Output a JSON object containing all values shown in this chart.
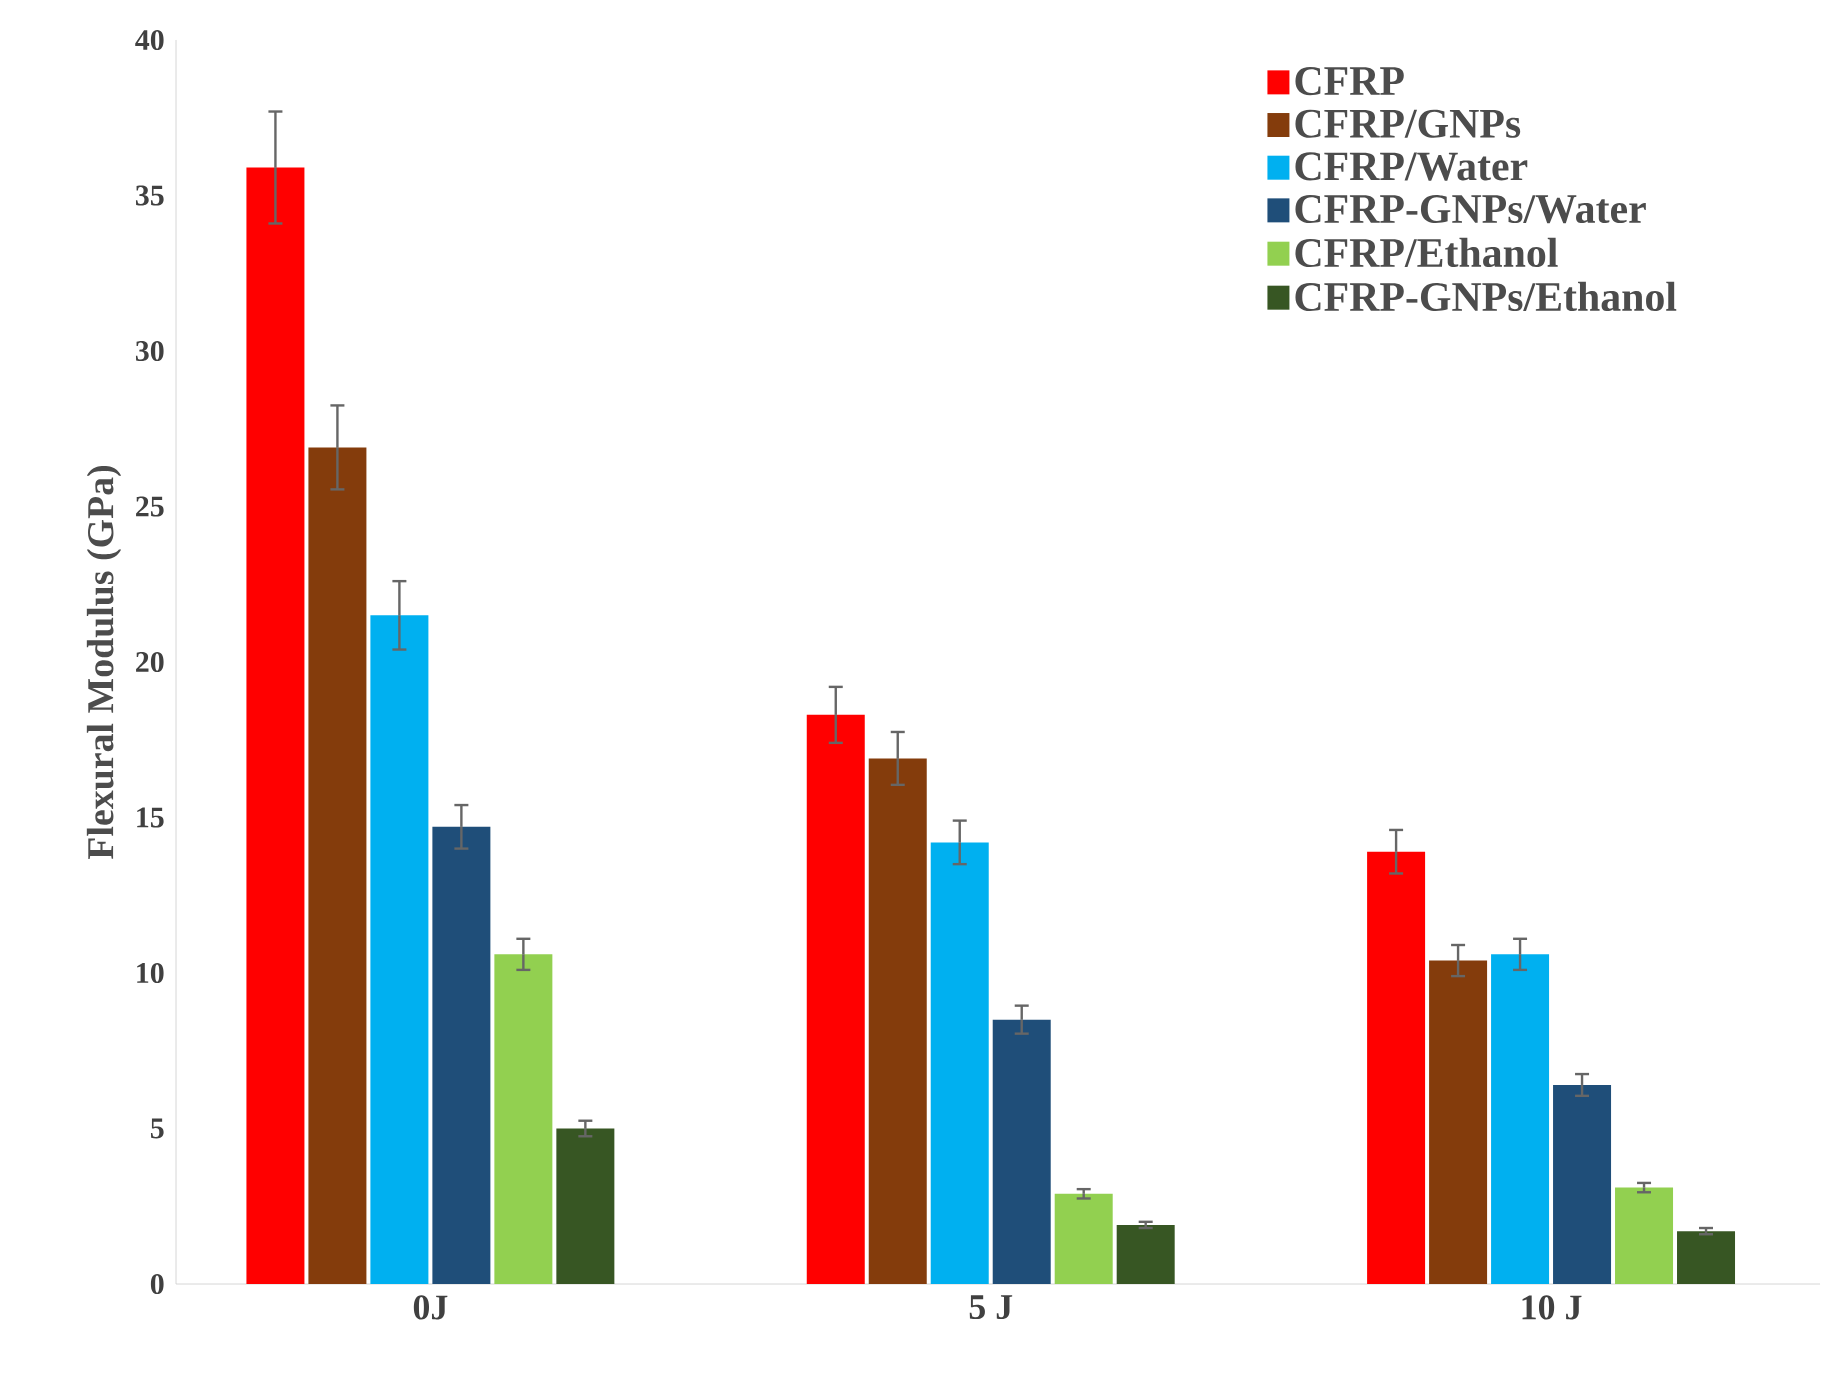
{
  "chart_data": {
    "type": "bar",
    "ylabel": "Flexural Modulus (GPa)",
    "categories": [
      "0J",
      "5 J",
      "10 J"
    ],
    "series": [
      {
        "name": "CFRP",
        "color": "#ff0000",
        "values": [
          35.9,
          18.3,
          13.9
        ],
        "errors": [
          1.8,
          0.9,
          0.7
        ]
      },
      {
        "name": "CFRP/GNPs",
        "color": "#843c0c",
        "values": [
          26.9,
          16.9,
          10.4
        ],
        "errors": [
          1.35,
          0.85,
          0.5
        ]
      },
      {
        "name": "CFRP/Water",
        "color": "#00b0f0",
        "values": [
          21.5,
          14.2,
          10.6
        ],
        "errors": [
          1.1,
          0.7,
          0.5
        ]
      },
      {
        "name": "CFRP-GNPs/Water",
        "color": "#1f4e79",
        "values": [
          14.7,
          8.5,
          6.4
        ],
        "errors": [
          0.7,
          0.45,
          0.35
        ]
      },
      {
        "name": "CFRP/Ethanol",
        "color": "#92d050",
        "values": [
          10.6,
          2.9,
          3.1
        ],
        "errors": [
          0.5,
          0.15,
          0.15
        ]
      },
      {
        "name": "CFRP-GNPs/Ethanol",
        "color": "#375623",
        "values": [
          5.0,
          1.9,
          1.7
        ],
        "errors": [
          0.25,
          0.1,
          0.1
        ]
      }
    ],
    "ylim": [
      0,
      40
    ],
    "yticks": [
      0,
      5,
      10,
      15,
      20,
      25,
      30,
      35,
      40
    ],
    "legend": "top right"
  }
}
